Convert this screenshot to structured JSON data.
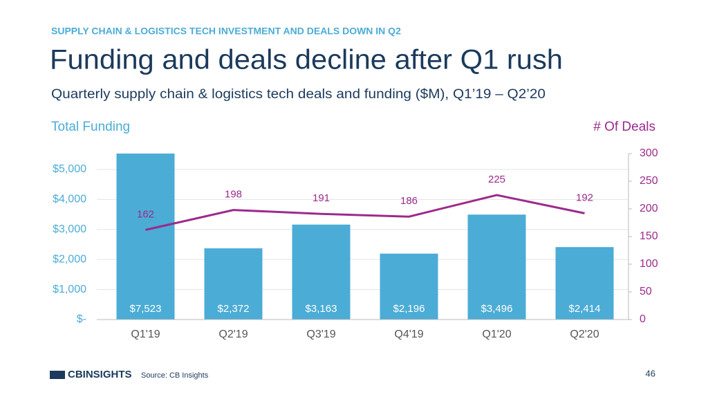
{
  "chart_data": {
    "type": "bar",
    "kicker": "SUPPLY CHAIN & LOGISTICS TECH INVESTMENT AND DEALS DOWN IN Q2",
    "title": "Funding and deals decline after Q1 rush",
    "subtitle": "Quarterly supply chain & logistics tech deals and funding ($M), Q1’19 – Q2’20",
    "categories": [
      "Q1'19",
      "Q2'19",
      "Q3'19",
      "Q4'19",
      "Q1'20",
      "Q2'20"
    ],
    "series": [
      {
        "name": "Total Funding",
        "type": "bar",
        "color": "#4bacd6",
        "values": [
          7523,
          2372,
          3163,
          2196,
          3496,
          2414
        ],
        "value_labels": [
          "$7,523",
          "$2,372",
          "$3,163",
          "$2,196",
          "$3,496",
          "$2,414"
        ]
      },
      {
        "name": "# Of Deals",
        "type": "line",
        "axis": "y2",
        "color": "#9c2a8c",
        "values": [
          162,
          198,
          191,
          186,
          225,
          192
        ]
      }
    ],
    "ylim": [
      0,
      5530
    ],
    "yticks": [
      {
        "value": 0,
        "label": "$-"
      },
      {
        "value": 1000,
        "label": "$1,000"
      },
      {
        "value": 2000,
        "label": "$2,000"
      },
      {
        "value": 3000,
        "label": "$3,000"
      },
      {
        "value": 4000,
        "label": "$4,000"
      },
      {
        "value": 5000,
        "label": "$5,000"
      }
    ],
    "y2lim": [
      0,
      300
    ],
    "y2ticks": [
      0,
      50,
      100,
      150,
      200,
      250,
      300
    ],
    "grid": true
  },
  "footer": {
    "brand": "CBINSIGHTS",
    "source": "Source: CB Insights",
    "page": "46"
  }
}
